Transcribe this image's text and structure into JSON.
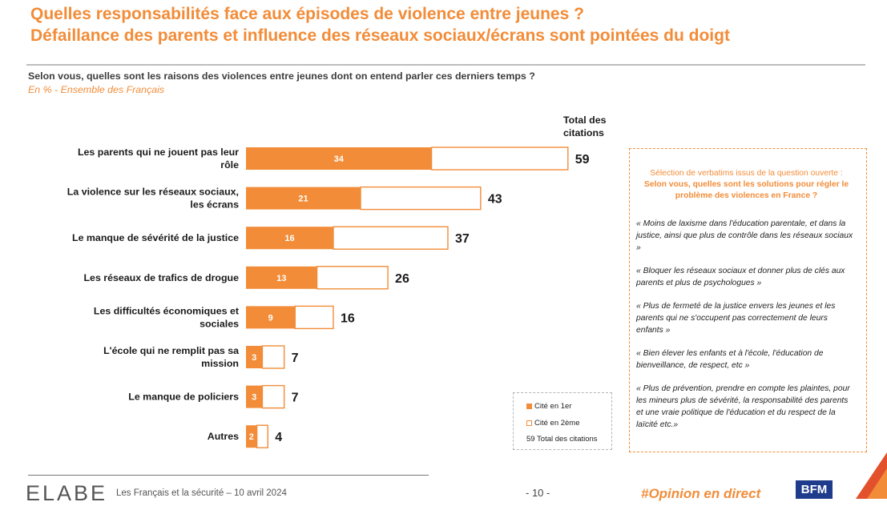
{
  "title": {
    "line1": "Quelles responsabilités face aux épisodes de violence entre jeunes ?",
    "line2": "Défaillance des parents et influence des réseaux sociaux/écrans sont pointées du doigt"
  },
  "question": "Selon vous, quelles sont les raisons des violences entre jeunes dont on entend parler ces derniers temps ?",
  "base": "En % - Ensemble des Français",
  "total_header": "Total des citations",
  "chart_data": {
    "type": "bar",
    "orientation": "horizontal",
    "stacked": true,
    "categories": [
      "Les parents qui ne jouent pas leur rôle",
      "La violence sur les réseaux sociaux, les écrans",
      "Le manque de sévérité de la justice",
      "Les réseaux de trafics de drogue",
      "Les difficultés économiques et sociales",
      "L'école qui ne remplit pas sa mission",
      "Le manque de policiers",
      "Autres"
    ],
    "series": [
      {
        "name": "Cité en 1er",
        "values": [
          34,
          21,
          16,
          13,
          9,
          3,
          3,
          2
        ],
        "color": "#f28c38"
      },
      {
        "name": "Cité en 2ème",
        "values": [
          25,
          22,
          21,
          13,
          7,
          4,
          4,
          2
        ],
        "color": "#ffffff",
        "border": "#f28c38"
      }
    ],
    "totals": [
      59,
      43,
      37,
      26,
      16,
      7,
      7,
      4
    ],
    "unit": "%"
  },
  "legend": {
    "first_label": "Cité en 1er",
    "second_label": "Cité en 2ème",
    "total_label": "59 Total des citations"
  },
  "verbatims": {
    "intro": "Sélection de verbatims issus de la question ouverte :",
    "question": "Selon vous, quelles sont les solutions pour régler le problème des violences en France ?",
    "quotes": [
      "« Moins de laxisme dans l'éducation parentale, et dans la justice, ainsi que plus de contrôle dans les réseaux sociaux »",
      "« Bloquer les réseaux sociaux et donner plus de clés aux parents et plus de psychologues »",
      "« Plus de fermeté de la justice envers les jeunes et les parents qui ne s'occupent pas correctement de leurs enfants »",
      "« Bien élever les enfants et à l'école, l'éducation de bienveillance, de respect, etc »",
      "« Plus de prévention, prendre en compte les plaintes, pour les mineurs plus de sévérité, la responsabilité des parents et une vraie politique de l'éducation et du respect de la laïcité etc.»"
    ]
  },
  "footer": {
    "logo": "ELABE",
    "text": "Les Français et la sécurité – 10 avril 2024",
    "page": "- 10 -",
    "hashtag": "#Opinion en direct",
    "partner_logo": "BFM"
  },
  "colors": {
    "accent": "#f28c38",
    "partner": "#1f3b8c"
  }
}
